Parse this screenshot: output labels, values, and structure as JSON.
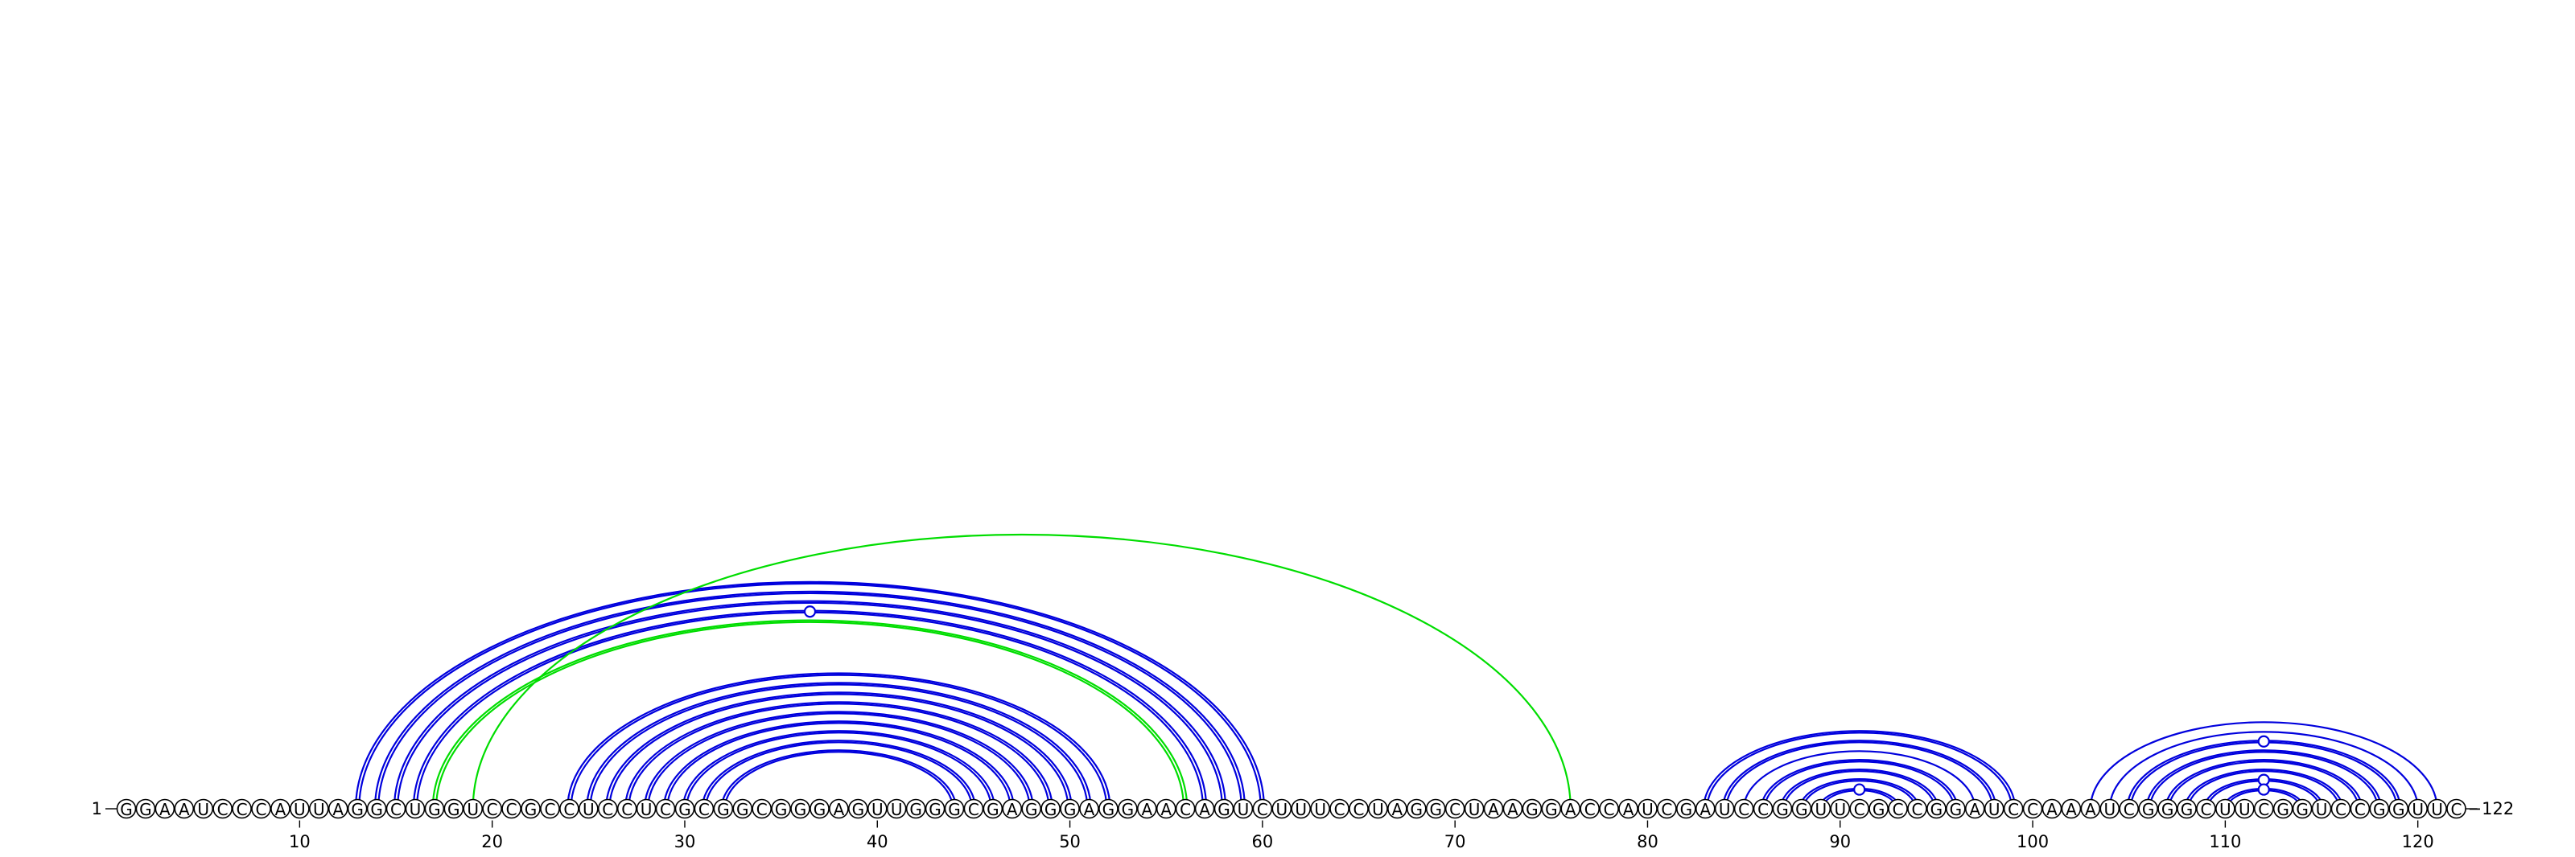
{
  "sequence": "GGAAUCCCAUUAGGCUGGUCCGCCUCCUCGCGGCGGGAGUUGGGCGAGGGAGGAACAGUCUUUCCUAGGCUAAGGACCAUCGAUCCGGUUCGCCGGAUCCAAAUCGGGCUUCGGUCCGGUUC",
  "start_label": "1",
  "end_label": "122",
  "tick_labels": [
    "10",
    "20",
    "30",
    "40",
    "50",
    "60",
    "70",
    "80",
    "90",
    "100",
    "110",
    "120"
  ],
  "colors": {
    "stem": "#0000dd",
    "pseudoknot": "#00dd00",
    "text": "#000000"
  },
  "arcs": [
    {
      "i": 13,
      "j": 60,
      "color": "stem",
      "double": true
    },
    {
      "i": 14,
      "j": 59,
      "color": "stem",
      "double": true
    },
    {
      "i": 15,
      "j": 58,
      "color": "stem",
      "double": true
    },
    {
      "i": 16,
      "j": 57,
      "color": "stem",
      "double": true,
      "marker": true
    },
    {
      "i": 17,
      "j": 56,
      "color": "pseudoknot",
      "double": true
    },
    {
      "i": 19,
      "j": 76,
      "color": "pseudoknot",
      "double": false
    },
    {
      "i": 24,
      "j": 52,
      "color": "stem",
      "double": true
    },
    {
      "i": 25,
      "j": 51,
      "color": "stem",
      "double": true
    },
    {
      "i": 26,
      "j": 50,
      "color": "stem",
      "double": true
    },
    {
      "i": 27,
      "j": 49,
      "color": "stem",
      "double": true
    },
    {
      "i": 28,
      "j": 48,
      "color": "stem",
      "double": true
    },
    {
      "i": 29,
      "j": 47,
      "color": "stem",
      "double": true
    },
    {
      "i": 30,
      "j": 46,
      "color": "stem",
      "double": true
    },
    {
      "i": 31,
      "j": 45,
      "color": "stem",
      "double": true
    },
    {
      "i": 32,
      "j": 44,
      "color": "stem",
      "double": true
    },
    {
      "i": 83,
      "j": 99,
      "color": "stem",
      "double": true
    },
    {
      "i": 84,
      "j": 98,
      "color": "stem",
      "double": true
    },
    {
      "i": 85,
      "j": 97,
      "color": "stem",
      "double": false
    },
    {
      "i": 86,
      "j": 96,
      "color": "stem",
      "double": true
    },
    {
      "i": 87,
      "j": 95,
      "color": "stem",
      "double": true
    },
    {
      "i": 88,
      "j": 94,
      "color": "stem",
      "double": true
    },
    {
      "i": 89,
      "j": 93,
      "color": "stem",
      "double": true,
      "marker": true
    },
    {
      "i": 103,
      "j": 121,
      "color": "stem",
      "double": false
    },
    {
      "i": 104,
      "j": 120,
      "color": "stem",
      "double": false
    },
    {
      "i": 105,
      "j": 119,
      "color": "stem",
      "double": true,
      "marker": true
    },
    {
      "i": 106,
      "j": 118,
      "color": "stem",
      "double": true
    },
    {
      "i": 107,
      "j": 117,
      "color": "stem",
      "double": true
    },
    {
      "i": 108,
      "j": 116,
      "color": "stem",
      "double": true
    },
    {
      "i": 109,
      "j": 115,
      "color": "stem",
      "double": true,
      "marker": true
    },
    {
      "i": 110,
      "j": 114,
      "color": "stem",
      "double": true,
      "marker": true
    }
  ]
}
